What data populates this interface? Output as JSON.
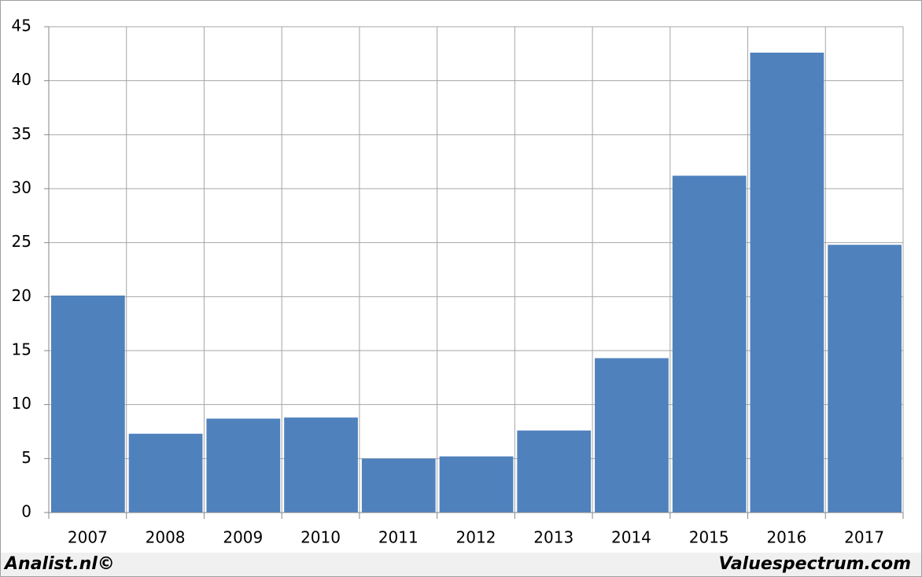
{
  "chart_data": {
    "type": "bar",
    "categories": [
      "2007",
      "2008",
      "2009",
      "2010",
      "2011",
      "2012",
      "2013",
      "2014",
      "2015",
      "2016",
      "2017"
    ],
    "values": [
      20.1,
      7.3,
      8.7,
      8.8,
      5.0,
      5.2,
      7.6,
      14.3,
      31.2,
      42.6,
      24.8
    ],
    "color": "#4f81bd",
    "ylim": [
      0,
      45
    ],
    "yticks": [
      0,
      5,
      10,
      15,
      20,
      25,
      30,
      35,
      40,
      45
    ],
    "grid": true,
    "annotations": [
      "Analist.nl©",
      "Valuespectrum.com"
    ]
  }
}
